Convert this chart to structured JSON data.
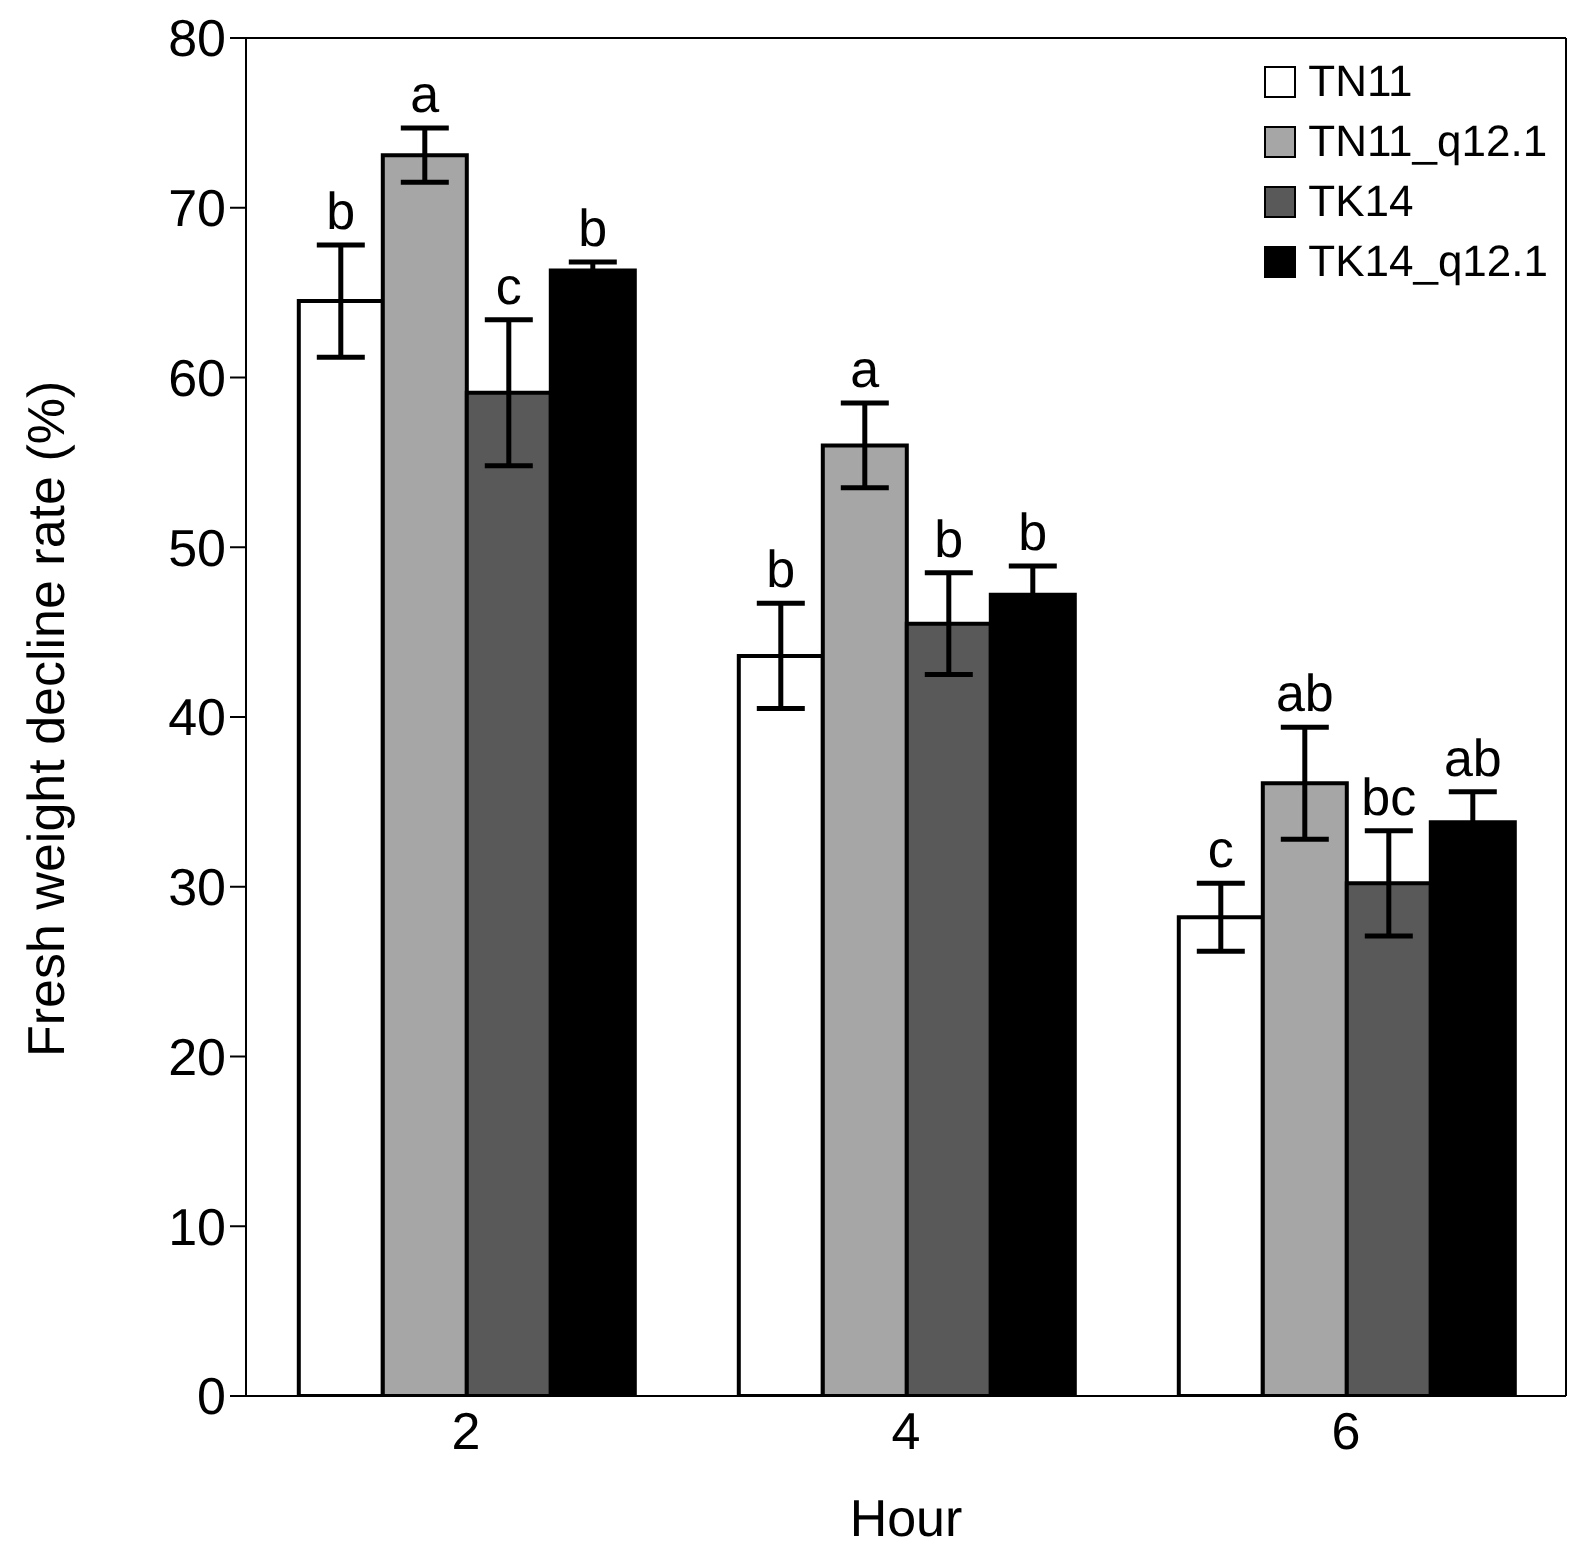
{
  "chart_data": {
    "type": "bar",
    "xlabel": "Hour",
    "ylabel": "Fresh weight decline rate (%)",
    "categories": [
      "2",
      "4",
      "6"
    ],
    "series": [
      {
        "name": "TN11",
        "color": "#ffffff",
        "values": [
          64.5,
          43.6,
          28.2
        ],
        "errors": [
          3.3,
          3.1,
          2.0
        ]
      },
      {
        "name": "TN11_q12.1",
        "color": "#a6a6a6",
        "values": [
          73.1,
          56.0,
          36.1
        ],
        "errors": [
          1.6,
          2.5,
          3.3
        ]
      },
      {
        "name": "TK14",
        "color": "#595959",
        "values": [
          59.1,
          45.5,
          30.2
        ],
        "errors": [
          4.3,
          3.0,
          3.1
        ]
      },
      {
        "name": "TK14_q12.1",
        "color": "#000000",
        "values": [
          66.3,
          47.2,
          33.8
        ],
        "errors": [
          0.5,
          1.7,
          1.8
        ]
      }
    ],
    "ylim": [
      0,
      80
    ],
    "yticks": [
      0,
      10,
      20,
      30,
      40,
      50,
      60,
      70,
      80
    ],
    "legend": "top right",
    "annotations": [
      {
        "text": "b",
        "x": "2",
        "y": 64.5
      },
      {
        "text": "a",
        "x": "2",
        "y": 73.1
      },
      {
        "text": "c",
        "x": "2",
        "y": 59.1
      },
      {
        "text": "b",
        "x": "2",
        "y": 66.3
      },
      {
        "text": "b",
        "x": "4",
        "y": 43.6
      },
      {
        "text": "a",
        "x": "4",
        "y": 56.0
      },
      {
        "text": "b",
        "x": "4",
        "y": 45.5
      },
      {
        "text": "b",
        "x": "4",
        "y": 47.2
      },
      {
        "text": "c",
        "x": "6",
        "y": 28.2
      },
      {
        "text": "ab",
        "x": "6",
        "y": 36.1
      },
      {
        "text": "bc",
        "x": "6",
        "y": 30.2
      },
      {
        "text": "ab",
        "x": "6",
        "y": 33.8
      }
    ]
  }
}
